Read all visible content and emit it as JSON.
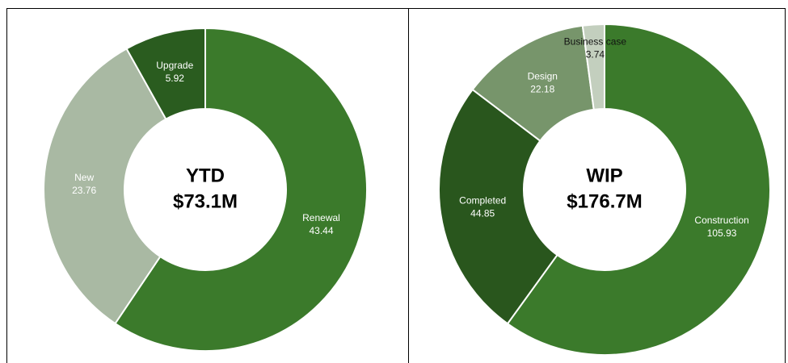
{
  "chart_data": [
    {
      "type": "donut",
      "title": "YTD",
      "center_label": "$73.1M",
      "categories": [
        "Renewal",
        "New",
        "Upgrade"
      ],
      "values": [
        43.44,
        23.76,
        5.92
      ],
      "colors": [
        "#3b7a2b",
        "#a9b9a3",
        "#2a5c1f"
      ]
    },
    {
      "type": "donut",
      "title": "WIP",
      "center_label": "$176.7M",
      "categories": [
        "Construction",
        "Completed",
        "Design",
        "Business case"
      ],
      "values": [
        105.93,
        44.85,
        22.18,
        3.74
      ],
      "colors": [
        "#3b7a2b",
        "#29561d",
        "#77956b",
        "#c3cfbe"
      ]
    }
  ]
}
